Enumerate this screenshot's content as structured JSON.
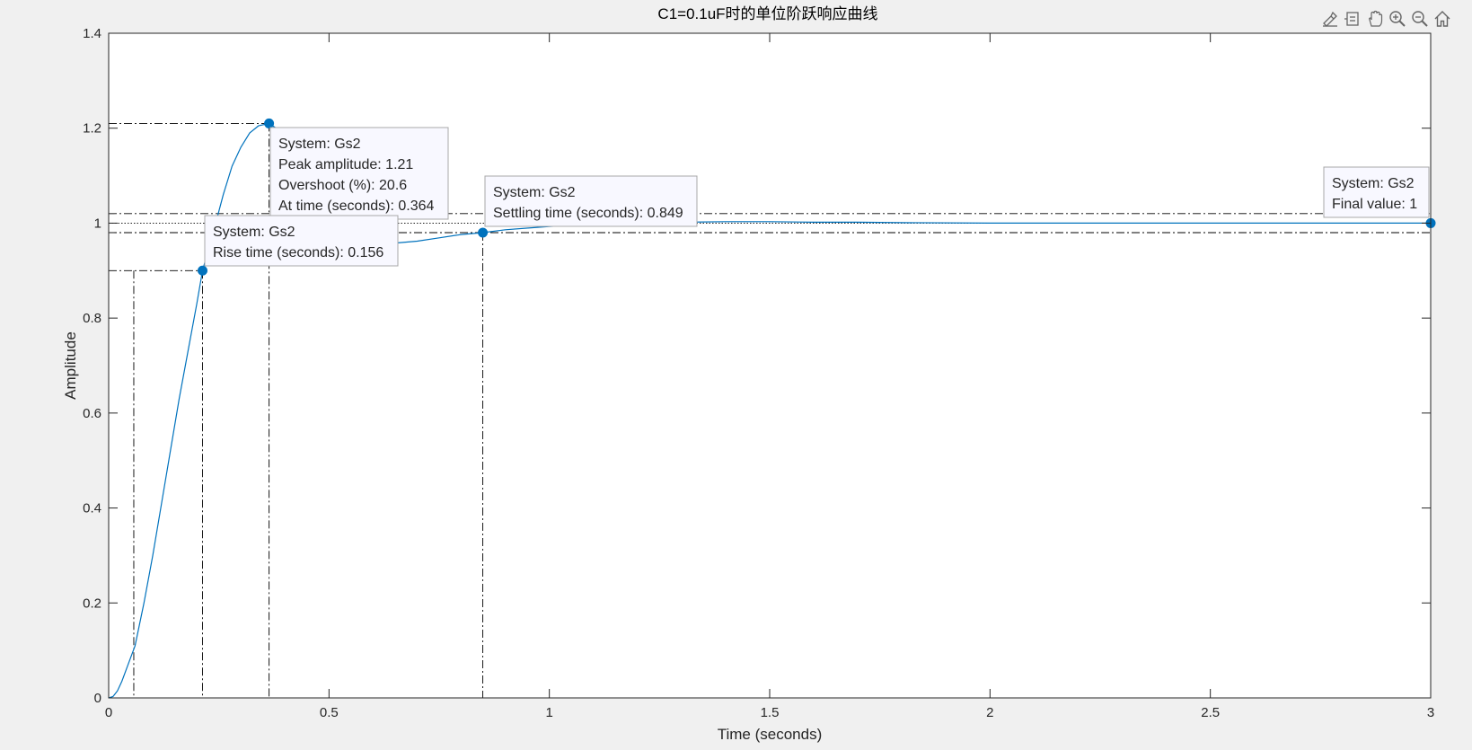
{
  "chart_data": {
    "type": "line",
    "title": "C1=0.1uF时的单位阶跃响应曲线",
    "xlabel": "Time (seconds)",
    "ylabel": "Amplitude",
    "xlim": [
      0,
      3
    ],
    "ylim": [
      0,
      1.4
    ],
    "xticks": [
      0,
      0.5,
      1,
      1.5,
      2,
      2.5,
      3
    ],
    "xtick_labels": [
      "0",
      "0.5",
      "1",
      "1.5",
      "2",
      "2.5",
      "3"
    ],
    "yticks": [
      0,
      0.2,
      0.4,
      0.6,
      0.8,
      1.0,
      1.2,
      1.4
    ],
    "ytick_labels": [
      "0",
      "0.2",
      "0.4",
      "0.6",
      "0.8",
      "1",
      "1.2",
      "1.4"
    ],
    "grid": false,
    "series": [
      {
        "color": "#0072bd",
        "x": [
          0,
          0.01,
          0.02,
          0.03,
          0.04,
          0.05,
          0.06,
          0.08,
          0.1,
          0.12,
          0.14,
          0.16,
          0.18,
          0.2,
          0.213,
          0.24,
          0.26,
          0.28,
          0.3,
          0.32,
          0.34,
          0.364,
          0.38,
          0.4,
          0.42,
          0.44,
          0.46,
          0.48,
          0.5,
          0.55,
          0.6,
          0.65,
          0.7,
          0.75,
          0.8,
          0.849,
          0.9,
          1.0,
          1.1,
          1.2,
          1.3,
          1.4,
          1.5,
          1.6,
          1.7,
          1.8,
          2.0,
          2.2,
          2.4,
          2.6,
          2.8,
          3.0
        ],
        "y": [
          0,
          0.003,
          0.015,
          0.035,
          0.06,
          0.085,
          0.11,
          0.2,
          0.3,
          0.41,
          0.52,
          0.63,
          0.73,
          0.83,
          0.9,
          0.99,
          1.06,
          1.12,
          1.16,
          1.19,
          1.205,
          1.21,
          1.2,
          1.17,
          1.13,
          1.09,
          1.05,
          1.02,
          0.995,
          0.97,
          0.96,
          0.958,
          0.962,
          0.969,
          0.976,
          0.98,
          0.986,
          0.993,
          0.998,
          1.0,
          1.002,
          1.003,
          1.003,
          1.002,
          1.002,
          1.001,
          1.0,
          1.0,
          1.0,
          1.0,
          1.0,
          1.0
        ]
      }
    ],
    "characteristic_lines": {
      "settling_upper": 1.02,
      "settling_lower": 0.98,
      "peak_level": 1.21,
      "rise_low_level": 0.1,
      "rise_high_level": 0.9,
      "rise_low_time": 0.057,
      "rise_high_time": 0.213,
      "peak_time": 0.364,
      "settling_time": 0.849,
      "final_value_level": 1.0
    },
    "markers": [
      {
        "x": 0.364,
        "y": 1.21
      },
      {
        "x": 0.213,
        "y": 0.9
      },
      {
        "x": 0.849,
        "y": 0.98
      },
      {
        "x": 3.0,
        "y": 1.0
      }
    ],
    "datatips": [
      {
        "lines": [
          "System: Gs2",
          "Peak amplitude: 1.21",
          "Overshoot (%): 20.6",
          "At time (seconds): 0.364"
        ]
      },
      {
        "lines": [
          "System: Gs2",
          "Rise time (seconds): 0.156"
        ]
      },
      {
        "lines": [
          "System: Gs2",
          "Settling time (seconds): 0.849"
        ]
      },
      {
        "lines": [
          "System: Gs2",
          "Final value: 1"
        ]
      }
    ]
  },
  "toolbar": {
    "items": [
      "brush-icon",
      "datatip-icon",
      "pan-icon",
      "zoom-in-icon",
      "zoom-out-icon",
      "home-icon"
    ]
  }
}
